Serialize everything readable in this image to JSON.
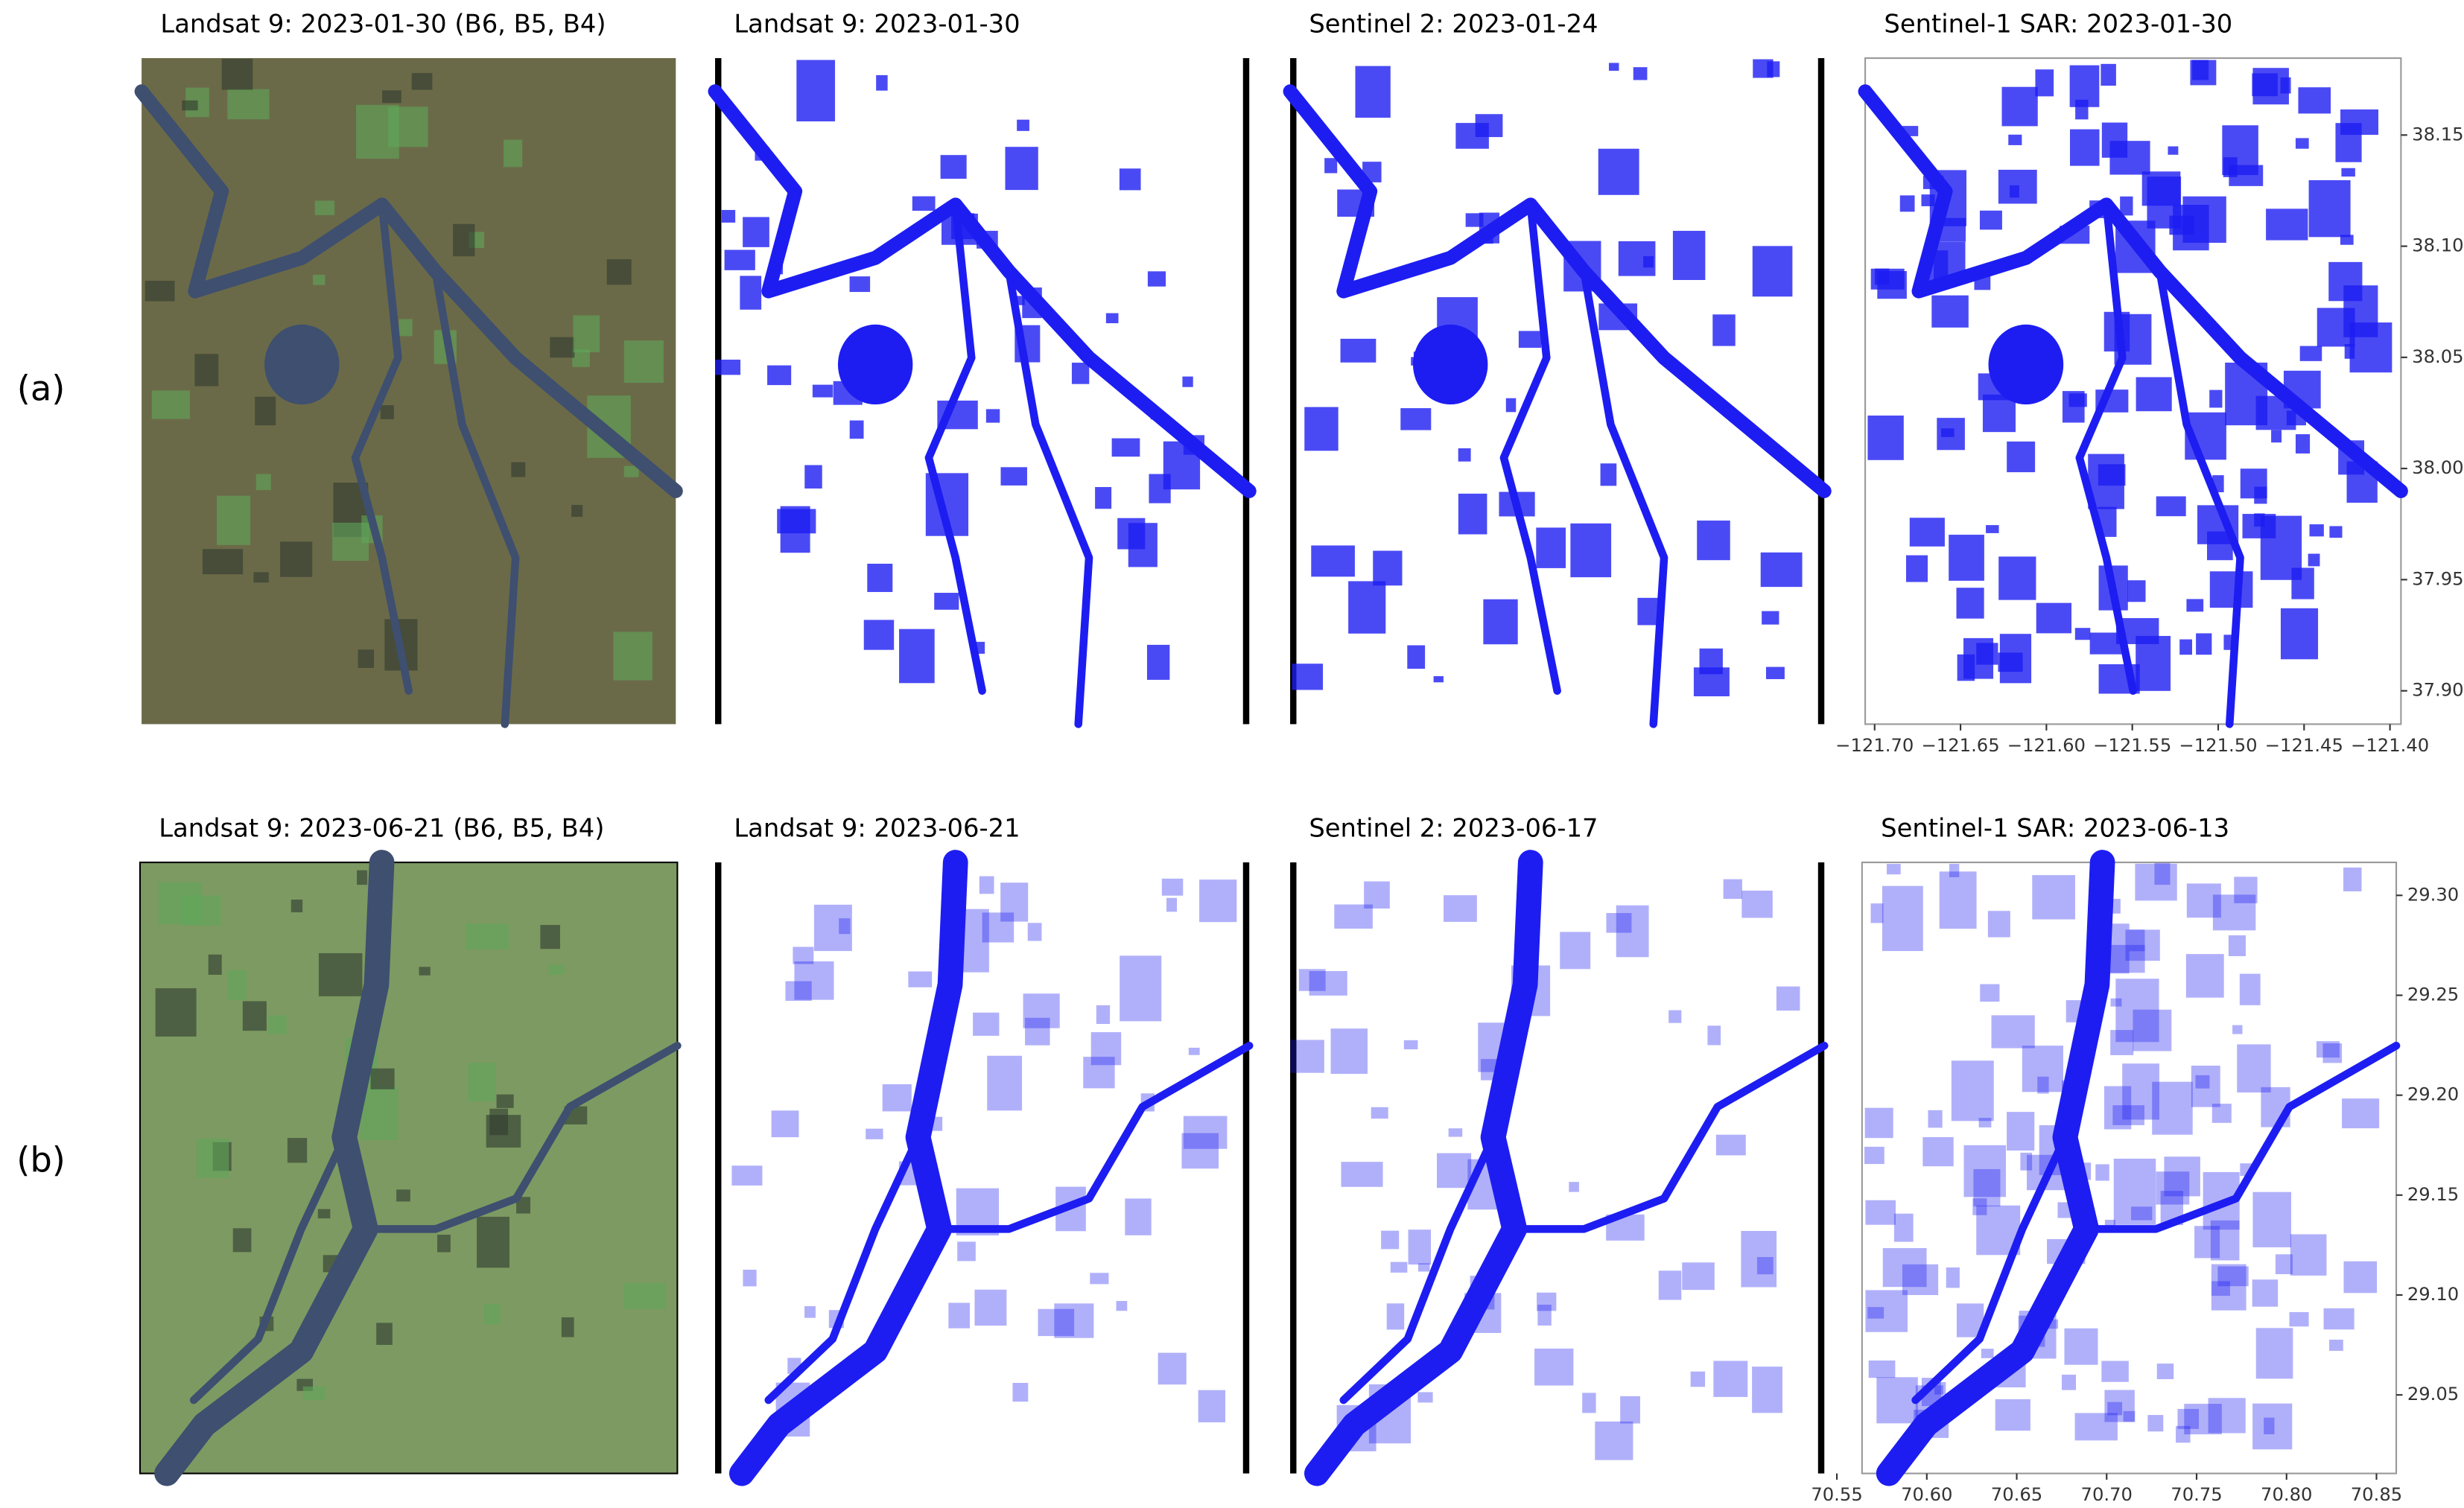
{
  "rows": [
    {
      "label": "(a)",
      "panels": [
        {
          "title": "Landsat 9: 2023-01-30 (B6, B5, B4)"
        },
        {
          "title": "Landsat 9: 2023-01-30"
        },
        {
          "title": "Sentinel 2: 2023-01-24"
        },
        {
          "title": "Sentinel-1 SAR: 2023-01-30"
        }
      ],
      "xlim": [
        -121.7055,
        -121.3936
      ],
      "xticks": [
        {
          "value": -121.7,
          "label": "−121.70"
        },
        {
          "value": -121.65,
          "label": "−121.65"
        },
        {
          "value": -121.6,
          "label": "−121.60"
        },
        {
          "value": -121.55,
          "label": "−121.55"
        },
        {
          "value": -121.5,
          "label": "−121.50"
        },
        {
          "value": -121.45,
          "label": "−121.45"
        },
        {
          "value": -121.4,
          "label": "−121.40"
        }
      ],
      "ylim": [
        37.885,
        38.1846
      ],
      "yticks": [
        38.15,
        {
          "value": 38.1,
          "label": "38.10"
        },
        38.05,
        {
          "value": 38.0,
          "label": "38.00"
        },
        37.95,
        {
          "value": 37.9,
          "label": "37.90"
        }
      ]
    },
    {
      "label": "(b)",
      "panels": [
        {
          "title": "Landsat 9: 2023-06-21 (B6, B5, B4)"
        },
        {
          "title": "Landsat 9: 2023-06-21"
        },
        {
          "title": "Sentinel 2: 2023-06-17"
        },
        {
          "title": "Sentinel-1 SAR: 2023-06-13"
        }
      ],
      "xlim": [
        70.564,
        70.861
      ],
      "xticks": [
        70.55,
        {
          "value": 70.6,
          "label": "70.60"
        },
        70.65,
        {
          "value": 70.7,
          "label": "70.70"
        },
        70.75,
        {
          "value": 70.8,
          "label": "70.80"
        },
        70.85
      ],
      "ylim": [
        29.0107,
        29.3165
      ],
      "yticks": [
        {
          "value": 29.3,
          "label": "29.30"
        },
        29.25,
        {
          "value": 29.2,
          "label": "29.20"
        },
        29.15,
        {
          "value": 29.1,
          "label": "29.10"
        },
        29.05
      ]
    }
  ]
}
